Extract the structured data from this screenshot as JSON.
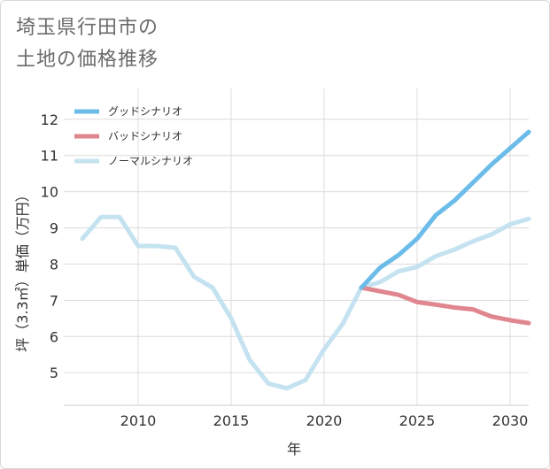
{
  "title_lines": [
    "埼玉県行田市の",
    "土地の価格推移"
  ],
  "chart_data": {
    "type": "line",
    "xlabel": "年",
    "ylabel": "坪（3.3㎡）単価（万円）",
    "xlim": [
      2006.0,
      2031.0
    ],
    "ylim": [
      4.1,
      12.85
    ],
    "xticks": [
      2010,
      2015,
      2020,
      2025,
      2030
    ],
    "yticks": [
      5,
      6,
      7,
      8,
      9,
      10,
      11,
      12
    ],
    "grid": true,
    "legend": "top-left",
    "series": [
      {
        "name": "グッドシナリオ",
        "color": "#6cbcea",
        "x": [
          2022,
          2023,
          2024,
          2025,
          2026,
          2027,
          2028,
          2029,
          2030,
          2031
        ],
        "y": [
          7.35,
          7.9,
          8.25,
          8.7,
          9.35,
          9.75,
          10.25,
          10.75,
          11.2,
          11.65
        ]
      },
      {
        "name": "バッドシナリオ",
        "color": "#e0868f",
        "x": [
          2022,
          2023,
          2024,
          2025,
          2026,
          2027,
          2028,
          2029,
          2030,
          2031
        ],
        "y": [
          7.35,
          7.25,
          7.15,
          6.95,
          6.88,
          6.8,
          6.75,
          6.55,
          6.45,
          6.37
        ]
      },
      {
        "name": "ノーマルシナリオ",
        "color": "#c4e2f0",
        "x": [
          2007,
          2008,
          2009,
          2010,
          2011,
          2012,
          2013,
          2014,
          2015,
          2016,
          2017,
          2018,
          2019,
          2020,
          2021,
          2022,
          2023,
          2024,
          2025,
          2026,
          2027,
          2028,
          2029,
          2030,
          2031
        ],
        "y": [
          8.7,
          9.3,
          9.3,
          8.5,
          8.5,
          8.45,
          7.65,
          7.35,
          6.5,
          5.35,
          4.7,
          4.57,
          4.8,
          5.65,
          6.35,
          7.35,
          7.5,
          7.8,
          7.92,
          8.22,
          8.4,
          8.63,
          8.82,
          9.1,
          9.25
        ]
      }
    ]
  }
}
